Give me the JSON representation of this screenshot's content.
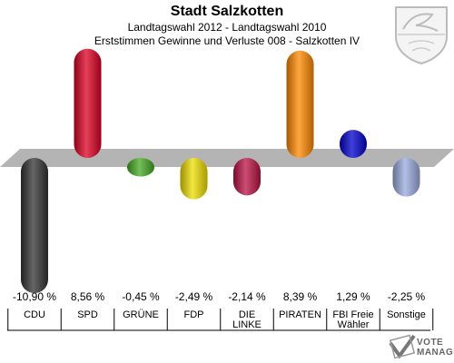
{
  "header": {
    "city": "Stadt Salzkotten",
    "election": "Landtagswahl 2012 - Landtagswahl 2010",
    "subtitle": "Erststimmen Gewinne und Verluste 008 - Salzkotten IV"
  },
  "logo": {
    "line1": "VOTE",
    "line2": "MANAGER"
  },
  "chart_data": {
    "type": "bar",
    "categories": [
      "CDU",
      "SPD",
      "GRÜNE",
      "FDP",
      "DIE LINKE",
      "PIRATEN",
      "FBI Freie Wähler",
      "Sonstige"
    ],
    "category_lines": [
      [
        "CDU"
      ],
      [
        "SPD"
      ],
      [
        "GRÜNE"
      ],
      [
        "FDP"
      ],
      [
        "DIE",
        "LINKE"
      ],
      [
        "PIRATEN"
      ],
      [
        "FBI Freie",
        "Wähler"
      ],
      [
        "Sonstige"
      ]
    ],
    "values": [
      -10.9,
      8.56,
      -0.45,
      -2.49,
      -2.14,
      8.39,
      1.29,
      -2.25
    ],
    "value_labels": [
      "-10,90 %",
      "8,56 %",
      "-0,45 %",
      "-2,49 %",
      "-2,14 %",
      "8,39 %",
      "1,29 %",
      "-2,25 %"
    ],
    "colors": [
      "#333333",
      "#dd0022",
      "#44aa22",
      "#eedd00",
      "#bb1144",
      "#ff8800",
      "#0000cc",
      "#99aadd"
    ],
    "ylim": [
      -11.5,
      9.5
    ]
  }
}
